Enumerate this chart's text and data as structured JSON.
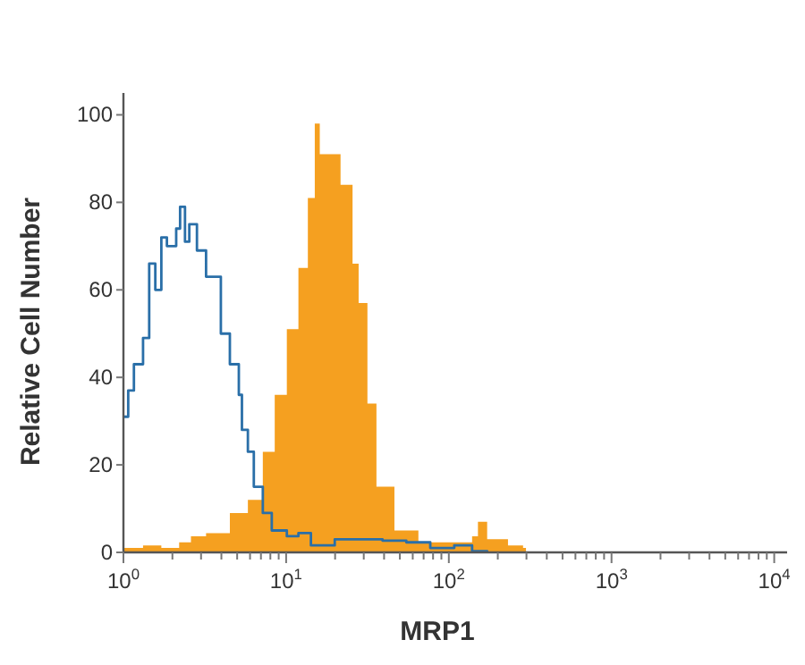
{
  "chart_data": {
    "type": "area",
    "xlabel": "MRP1",
    "ylabel": "Relative Cell Number",
    "log": "x",
    "xlim": [
      1,
      12000
    ],
    "ylim": [
      0,
      105
    ],
    "xticks": [
      {
        "value": 1,
        "label": "10$^{0}$"
      },
      {
        "value": 2,
        "label": null
      },
      {
        "value": 3,
        "label": null
      },
      {
        "value": 4,
        "label": null
      },
      {
        "value": 5,
        "label": null
      },
      {
        "value": 6,
        "label": null
      },
      {
        "value": 7,
        "label": null
      },
      {
        "value": 8,
        "label": null
      },
      {
        "value": 9,
        "label": null
      },
      {
        "value": 10,
        "label": "10$^{1}$"
      },
      {
        "value": 20,
        "label": null
      },
      {
        "value": 30,
        "label": null
      },
      {
        "value": 40,
        "label": null
      },
      {
        "value": 50,
        "label": null
      },
      {
        "value": 60,
        "label": null
      },
      {
        "value": 70,
        "label": null
      },
      {
        "value": 80,
        "label": null
      },
      {
        "value": 90,
        "label": null
      },
      {
        "value": 100,
        "label": "10$^{2}$"
      },
      {
        "value": 200,
        "label": null
      },
      {
        "value": 300,
        "label": null
      },
      {
        "value": 400,
        "label": null
      },
      {
        "value": 500,
        "label": null
      },
      {
        "value": 600,
        "label": null
      },
      {
        "value": 700,
        "label": null
      },
      {
        "value": 800,
        "label": null
      },
      {
        "value": 900,
        "label": null
      },
      {
        "value": 1000,
        "label": "10$^{3}$"
      },
      {
        "value": 2000,
        "label": null
      },
      {
        "value": 3000,
        "label": null
      },
      {
        "value": 4000,
        "label": null
      },
      {
        "value": 5000,
        "label": null
      },
      {
        "value": 6000,
        "label": null
      },
      {
        "value": 7000,
        "label": null
      },
      {
        "value": 8000,
        "label": null
      },
      {
        "value": 9000,
        "label": null
      },
      {
        "value": 10000,
        "label": "10$^{4}$"
      }
    ],
    "yticks": [
      0,
      20,
      40,
      60,
      80,
      100
    ],
    "grid": false,
    "series": [
      {
        "color": "#f5a020",
        "x": [
          1,
          1.32,
          1.71,
          2.2,
          2.6,
          3.22,
          4.51,
          5.82,
          7.19,
          8.51,
          10.1,
          11.9,
          13.6,
          15,
          16.1,
          19,
          21.6,
          25.6,
          27.9,
          31.6,
          35.9,
          46.3,
          65,
          108,
          139,
          151,
          172,
          231,
          286,
          298
        ],
        "values": [
          1,
          1.6,
          1,
          2.3,
          3.7,
          4.4,
          9,
          12,
          23,
          36,
          51,
          65,
          81,
          98,
          91,
          91,
          84,
          66,
          57,
          34,
          15,
          5,
          2.3,
          2.3,
          3.7,
          7,
          3,
          1.6,
          1,
          0
        ]
      },
      {
        "type": "step",
        "color": "#2a6fa8",
        "x": [
          1,
          1.07,
          1.16,
          1.32,
          1.44,
          1.57,
          1.71,
          1.85,
          2.11,
          2.23,
          2.39,
          2.54,
          2.83,
          3.22,
          3.81,
          3.97,
          4.51,
          5.12,
          5.35,
          5.82,
          6.33,
          7.19,
          8.16,
          10.1,
          11.9,
          14.2,
          19.9,
          27.9,
          39.1,
          54.8,
          76.9,
          108,
          139,
          172
        ],
        "values": [
          31,
          37,
          43,
          49,
          66,
          60,
          72,
          70,
          74,
          79,
          71,
          75,
          69,
          63,
          63,
          50,
          43,
          36,
          28,
          23,
          15,
          9,
          5,
          3.7,
          4.4,
          1.6,
          3,
          3,
          2.7,
          2.3,
          1,
          1.6,
          0.3,
          0
        ]
      }
    ]
  }
}
